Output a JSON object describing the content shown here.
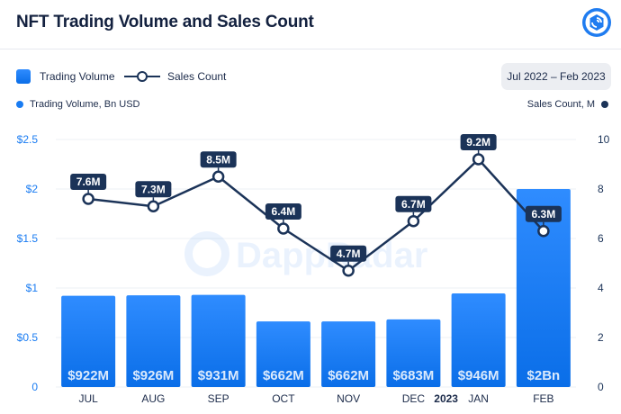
{
  "header": {
    "title": "NFT Trading Volume and Sales Count",
    "logo_icon": "dappradar-logo-icon"
  },
  "legend": {
    "volume_label": "Trading Volume",
    "sales_label": "Sales Count",
    "date_range": "Jul 2022 – Feb 2023"
  },
  "axes": {
    "left_title": "Trading Volume, Bn USD",
    "right_title": "Sales Count, M"
  },
  "chart_data": {
    "type": "bar",
    "categories": [
      "JUL",
      "AUG",
      "SEP",
      "OCT",
      "NOV",
      "DEC",
      "JAN",
      "FEB"
    ],
    "year_marker": {
      "label": "2023",
      "category": "JAN"
    },
    "y_left": {
      "ylim": [
        0,
        2.5
      ],
      "ticks": [
        0,
        0.5,
        1,
        1.5,
        2,
        2.5
      ],
      "tick_labels": [
        "0",
        "$0.5",
        "$1",
        "$1.5",
        "$2",
        "$2.5"
      ]
    },
    "y_right": {
      "ylim": [
        0,
        10
      ],
      "ticks": [
        0,
        2,
        4,
        6,
        8,
        10
      ],
      "tick_labels": [
        "0",
        "2",
        "4",
        "6",
        "8",
        "10"
      ]
    },
    "series": [
      {
        "name": "Trading Volume",
        "kind": "bar",
        "axis": "left",
        "values": [
          0.922,
          0.926,
          0.931,
          0.662,
          0.662,
          0.683,
          0.946,
          2.0
        ],
        "labels": [
          "$922M",
          "$926M",
          "$931M",
          "$662M",
          "$662M",
          "$683M",
          "$946M",
          "$2Bn"
        ]
      },
      {
        "name": "Sales Count",
        "kind": "line",
        "axis": "right",
        "values": [
          7.6,
          7.3,
          8.5,
          6.4,
          4.7,
          6.7,
          9.2,
          6.3
        ],
        "labels": [
          "7.6M",
          "7.3M",
          "8.5M",
          "6.4M",
          "4.7M",
          "6.7M",
          "9.2M",
          "6.3M"
        ]
      }
    ],
    "watermark": "DappRadar",
    "colors": {
      "bar_top": "#2f8cff",
      "bar_bottom": "#0a6ee8",
      "line": "#1b3358",
      "label_bg": "#1b3358",
      "grid": "#eef0f4"
    },
    "grid": true
  }
}
